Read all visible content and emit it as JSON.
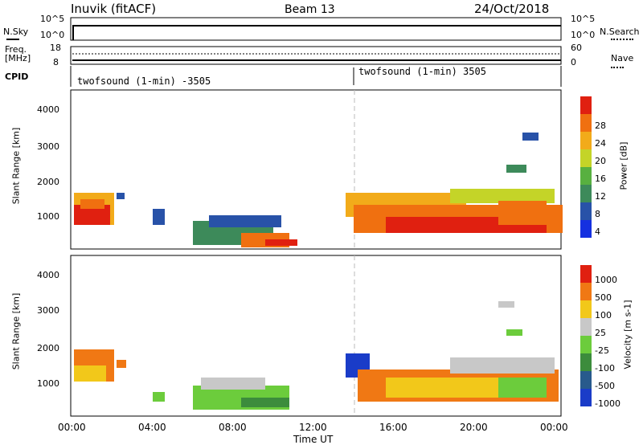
{
  "header": {
    "station": "Inuvik (fitACF)",
    "beam": "Beam 13",
    "date": "24/Oct/2018"
  },
  "strip_panels": {
    "nsky": {
      "label": "N.Sky",
      "tick_top": "10^5",
      "tick_bottom": "10^0"
    },
    "nsearch": {
      "label": "N.Search",
      "tick_top": "10^5",
      "tick_bottom": "10^0"
    },
    "freq": {
      "label_line1": "Freq.",
      "label_line2": "[MHz]",
      "tick_top": "18",
      "tick_bottom": "8"
    },
    "nave": {
      "label": "Nave",
      "tick_top": "60",
      "tick_bottom": "0"
    },
    "cpid": {
      "label": "CPID",
      "program_left": "twofsound (1-min) -3505",
      "program_right": "twofsound (1-min) 3505"
    }
  },
  "x_axis": {
    "label": "Time UT",
    "ticks": [
      "00:00",
      "04:00",
      "08:00",
      "12:00",
      "16:00",
      "20:00",
      "00:00"
    ]
  },
  "chart_data": [
    {
      "type": "heatmap",
      "ylabel": "Slant Range [km]",
      "yticks": [
        "1000",
        "2000",
        "3000",
        "4000"
      ],
      "ylim": [
        180,
        4600
      ],
      "xlim_hours": [
        0,
        24
      ],
      "colorbar": {
        "label": "Power [dB]",
        "ticks": [
          "4",
          "8",
          "12",
          "16",
          "20",
          "24",
          "28"
        ],
        "colors": [
          "#1530e0",
          "#2852a8",
          "#3d8a5a",
          "#58b040",
          "#c4d428",
          "#f2ab1a",
          "#f07010",
          "#e02010"
        ]
      }
    },
    {
      "type": "heatmap",
      "ylabel": "Slant Range [km]",
      "yticks": [
        "1000",
        "2000",
        "3000",
        "4000"
      ],
      "ylim": [
        180,
        4600
      ],
      "xlim_hours": [
        0,
        24
      ],
      "colorbar": {
        "label": "Velocity [m s-1]",
        "ticks": [
          "1000",
          "500",
          "100",
          "25",
          "-25",
          "-100",
          "-500",
          "-1000"
        ],
        "colors": [
          "#1a3cc8",
          "#285a8c",
          "#3c8c3c",
          "#6ccc3c",
          "#c8c8c8",
          "#f2c81a",
          "#f07814",
          "#e02010"
        ]
      }
    }
  ]
}
